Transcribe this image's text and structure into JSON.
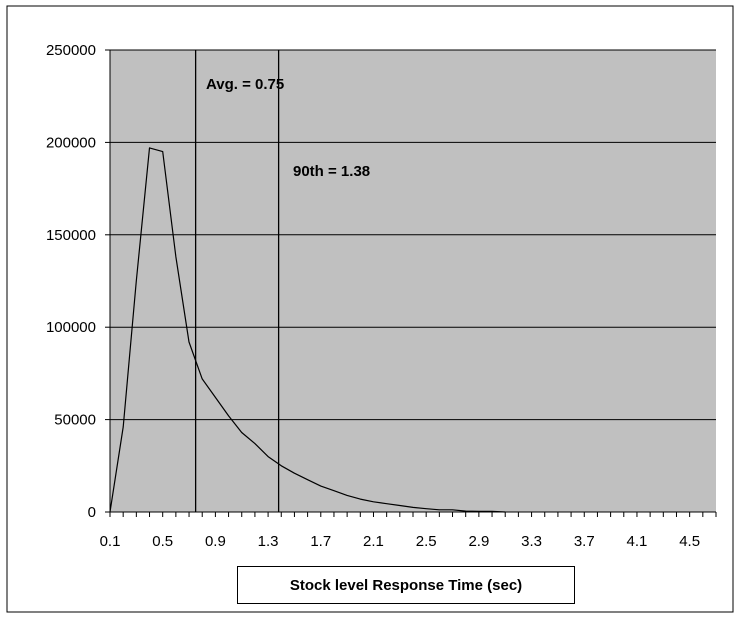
{
  "chart_data": {
    "type": "line",
    "xlabel": "Stock level Response Time (sec)",
    "ylabel": "",
    "xlim": [
      0.1,
      4.7
    ],
    "ylim": [
      0,
      250000
    ],
    "x_tick_labels": [
      "0.1",
      "0.5",
      "0.9",
      "1.3",
      "1.7",
      "2.1",
      "2.5",
      "2.9",
      "3.3",
      "3.7",
      "4.1",
      "4.5"
    ],
    "y_tick_labels": [
      "0",
      "50000",
      "100000",
      "150000",
      "200000",
      "250000"
    ],
    "y_ticks": [
      0,
      50000,
      100000,
      150000,
      200000,
      250000
    ],
    "grid": "horizontal",
    "plot_background": "#c0c0c0",
    "series": [
      {
        "x": [
          0.1,
          0.2,
          0.3,
          0.4,
          0.5,
          0.6,
          0.7,
          0.8,
          0.9,
          1.0,
          1.1,
          1.2,
          1.3,
          1.4,
          1.5,
          1.6,
          1.7,
          1.8,
          1.9,
          2.0,
          2.1,
          2.2,
          2.3,
          2.4,
          2.5,
          2.6,
          2.7,
          2.8,
          2.9,
          3.0,
          3.1
        ],
        "values": [
          0,
          46000,
          125000,
          197000,
          195000,
          138000,
          92000,
          72000,
          62000,
          52000,
          43000,
          37000,
          30000,
          25000,
          21000,
          17500,
          14000,
          11500,
          9000,
          7000,
          5500,
          4500,
          3500,
          2500,
          1800,
          1200,
          1200,
          500,
          400,
          300,
          0
        ],
        "color": "#000000"
      }
    ],
    "reference_lines": [
      {
        "x": 0.75,
        "label": "Avg. = 0.75"
      },
      {
        "x": 1.38,
        "label": "90th = 1.38"
      }
    ]
  }
}
